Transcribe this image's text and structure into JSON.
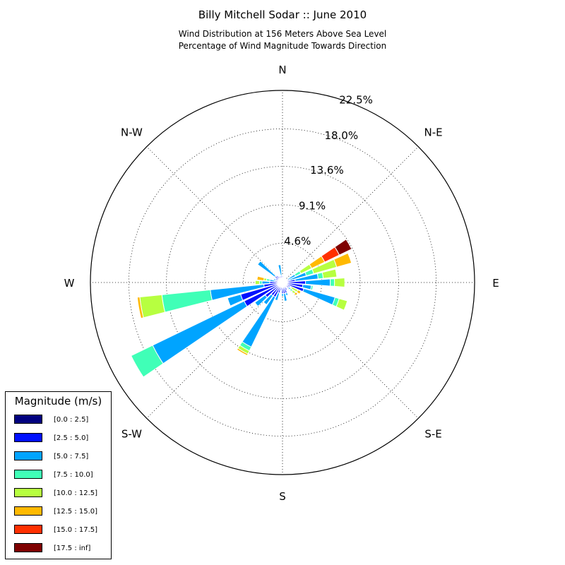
{
  "header": {
    "title": "Billy Mitchell Sodar :: June 2010",
    "subtitle_1": "Wind Distribution at 156 Meters Above Sea Level",
    "subtitle_2": "Percentage of Wind Magnitude Towards Direction"
  },
  "chart_data": {
    "type": "windrose",
    "title": "Billy Mitchell Sodar :: June 2010",
    "radial_unit": "%",
    "radial_max": 22.5,
    "radial_ticks": [
      4.6,
      9.1,
      13.6,
      18.0,
      22.5
    ],
    "radial_tick_labels": [
      "4.6%",
      "9.1%",
      "13.6%",
      "18.0%",
      "22.5%"
    ],
    "grid": true,
    "direction_labels": [
      {
        "angle": 0,
        "label": "N"
      },
      {
        "angle": 45,
        "label": "N-E"
      },
      {
        "angle": 90,
        "label": "E"
      },
      {
        "angle": 135,
        "label": "S-E"
      },
      {
        "angle": 180,
        "label": "S"
      },
      {
        "angle": 225,
        "label": "S-W"
      },
      {
        "angle": 270,
        "label": "W"
      },
      {
        "angle": 315,
        "label": "N-W"
      }
    ],
    "legend": {
      "title": "Magnitude (m/s)",
      "placement": "lower-left",
      "bins": [
        {
          "label": "[0.0 : 2.5]",
          "color": "#00007f"
        },
        {
          "label": "[2.5 : 5.0]",
          "color": "#0010ff"
        },
        {
          "label": "[5.0 : 7.5]",
          "color": "#00a4ff"
        },
        {
          "label": "[7.5 : 10.0]",
          "color": "#40ffb7"
        },
        {
          "label": "[10.0 : 12.5]",
          "color": "#b7ff40"
        },
        {
          "label": "[12.5 : 15.0]",
          "color": "#ffb900"
        },
        {
          "label": "[15.0 : 17.5]",
          "color": "#ff3000"
        },
        {
          "label": "[17.5 : inf]",
          "color": "#7f0000"
        }
      ]
    },
    "sectors": [
      {
        "direction": 0,
        "values": [
          0.3,
          0.5,
          0,
          0,
          0,
          0,
          0,
          0
        ]
      },
      {
        "direction": 10,
        "values": [
          0.3,
          0.2,
          0,
          0,
          0,
          0,
          0,
          0
        ]
      },
      {
        "direction": 20,
        "values": [
          0.2,
          0.2,
          0,
          0,
          0,
          0,
          0,
          0
        ]
      },
      {
        "direction": 30,
        "values": [
          0.2,
          0.2,
          0,
          0,
          0,
          0,
          0,
          0
        ]
      },
      {
        "direction": 40,
        "values": [
          0.2,
          0.2,
          0,
          0,
          0,
          0,
          0,
          0
        ]
      },
      {
        "direction": 50,
        "values": [
          0.2,
          0.3,
          0,
          0,
          0,
          0,
          0,
          0
        ]
      },
      {
        "direction": 60,
        "values": [
          0.3,
          0.4,
          1.0,
          0.7,
          1.4,
          1.7,
          1.9,
          1.6
        ]
      },
      {
        "direction": 70,
        "values": [
          0.3,
          0.6,
          2.0,
          0.9,
          2.8,
          1.8,
          0,
          0
        ]
      },
      {
        "direction": 80,
        "values": [
          0.3,
          1.2,
          2.7,
          0.6,
          1.6,
          0,
          0,
          0
        ]
      },
      {
        "direction": 90,
        "values": [
          0.4,
          2.3,
          2.9,
          0.5,
          1.2,
          0,
          0,
          0
        ]
      },
      {
        "direction": 100,
        "values": [
          0.4,
          2.0,
          1.0,
          0.2,
          0,
          0,
          0,
          0
        ]
      },
      {
        "direction": 110,
        "values": [
          0.4,
          2.2,
          3.8,
          0.5,
          1.0,
          0,
          0,
          0
        ]
      },
      {
        "direction": 120,
        "values": [
          0.4,
          0.6,
          0.1,
          0.1,
          0.8,
          0.4,
          0,
          0
        ]
      },
      {
        "direction": 130,
        "values": [
          0.3,
          0.6,
          0.3,
          0.3,
          0.4,
          0.3,
          0,
          0
        ]
      },
      {
        "direction": 140,
        "values": [
          0.3,
          0.4,
          0,
          0,
          0,
          0,
          0,
          0
        ]
      },
      {
        "direction": 150,
        "values": [
          0.3,
          0.7,
          0,
          0,
          0,
          0,
          0,
          0
        ]
      },
      {
        "direction": 160,
        "values": [
          0.3,
          1.0,
          0.3,
          0,
          0,
          0,
          0,
          0
        ]
      },
      {
        "direction": 170,
        "values": [
          0.3,
          1.0,
          0.9,
          0,
          0,
          0,
          0,
          0
        ]
      },
      {
        "direction": 180,
        "values": [
          0.3,
          1.0,
          0.3,
          0,
          0,
          0,
          0,
          0
        ]
      },
      {
        "direction": 190,
        "values": [
          0.3,
          0.6,
          0.1,
          0,
          0,
          0,
          0,
          0
        ]
      },
      {
        "direction": 200,
        "values": [
          0.3,
          1.0,
          0.9,
          0,
          0,
          0,
          0,
          0
        ]
      },
      {
        "direction": 210,
        "values": [
          0.4,
          1.5,
          6.5,
          0.5,
          0.4,
          0.2,
          0,
          0
        ]
      },
      {
        "direction": 220,
        "values": [
          0.4,
          1.5,
          1.3,
          0,
          0,
          0,
          0,
          0
        ]
      },
      {
        "direction": 230,
        "values": [
          0.5,
          2.0,
          1.5,
          0,
          0,
          0,
          0,
          0
        ]
      },
      {
        "direction": 240,
        "values": [
          0.6,
          4.4,
          11.9,
          2.8,
          0,
          0,
          0,
          0
        ]
      },
      {
        "direction": 250,
        "values": [
          0.6,
          4.5,
          1.6,
          0,
          0,
          0,
          0,
          0
        ]
      },
      {
        "direction": 260,
        "values": [
          0.6,
          1.6,
          6.3,
          5.7,
          2.6,
          0.3,
          0,
          0
        ]
      },
      {
        "direction": 270,
        "values": [
          0.5,
          1.0,
          0.9,
          0.3,
          0.5,
          0,
          0,
          0
        ]
      },
      {
        "direction": 280,
        "values": [
          0.4,
          0.5,
          0.6,
          0.4,
          0.3,
          0.8,
          0,
          0
        ]
      },
      {
        "direction": 290,
        "values": [
          0.3,
          0.5,
          0.3,
          0,
          0,
          0,
          0,
          0
        ]
      },
      {
        "direction": 300,
        "values": [
          0.3,
          0.6,
          0,
          0,
          0,
          0,
          0,
          0
        ]
      },
      {
        "direction": 310,
        "values": [
          0.3,
          0.8,
          2.5,
          0,
          0,
          0,
          0,
          0
        ]
      },
      {
        "direction": 320,
        "values": [
          0.3,
          0.7,
          0,
          0,
          0,
          0,
          0,
          0
        ]
      },
      {
        "direction": 330,
        "values": [
          0.3,
          0.5,
          0,
          0,
          0,
          0,
          0,
          0
        ]
      },
      {
        "direction": 340,
        "values": [
          0.3,
          0.5,
          0,
          0,
          0,
          0,
          0,
          0
        ]
      },
      {
        "direction": 350,
        "values": [
          0.3,
          0.5,
          1.3,
          0,
          0,
          0,
          0,
          0
        ]
      }
    ]
  }
}
